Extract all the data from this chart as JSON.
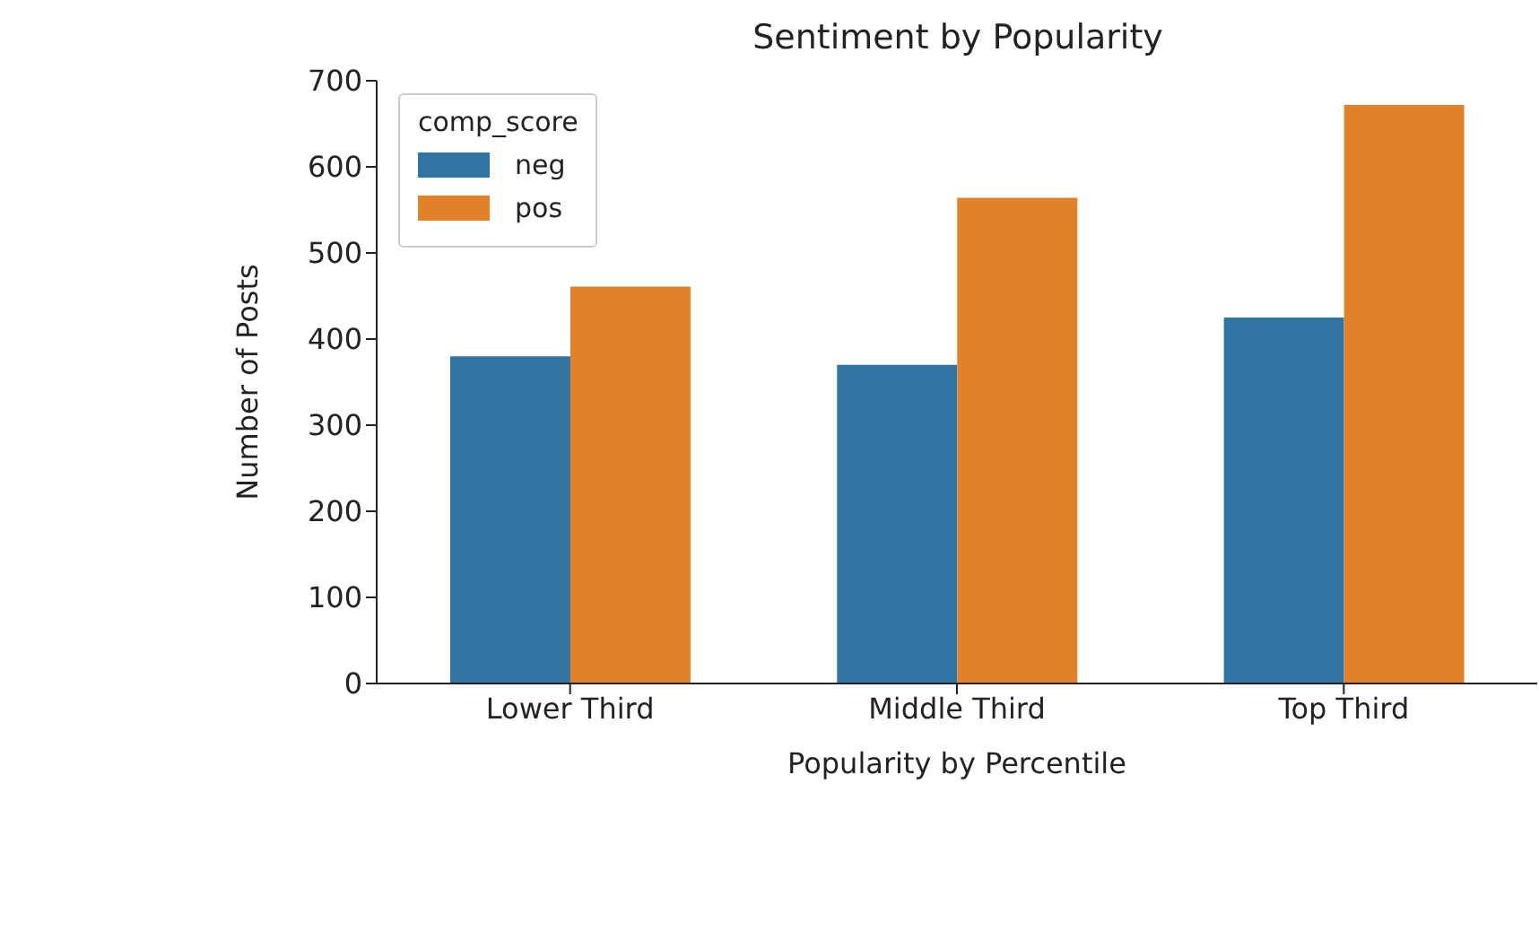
{
  "chart_data": {
    "type": "bar",
    "title": "Sentiment by Popularity",
    "xlabel": "Popularity by Percentile",
    "ylabel": "Number of Posts",
    "legend_title": "comp_score",
    "categories": [
      "Lower Third",
      "Middle Third",
      "Top Third"
    ],
    "series": [
      {
        "name": "neg",
        "color": "#3274a1",
        "values": [
          380,
          370,
          425
        ]
      },
      {
        "name": "pos",
        "color": "#e1812c",
        "values": [
          461,
          564,
          672
        ]
      }
    ],
    "ylim": [
      0,
      700
    ],
    "yticks": [
      0,
      100,
      200,
      300,
      400,
      500,
      600,
      700
    ],
    "grid": false,
    "legend": "top left"
  }
}
